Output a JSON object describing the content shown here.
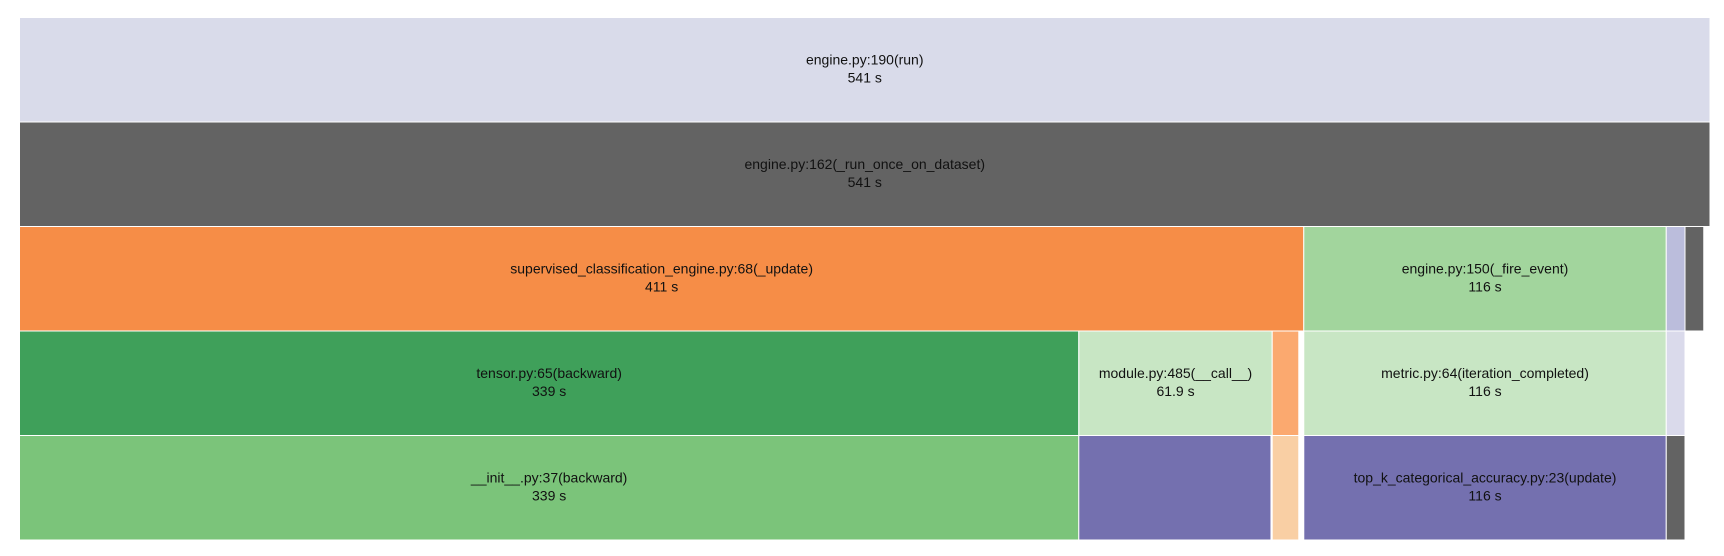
{
  "chart_data": {
    "type": "icicle",
    "root": {
      "name": "engine.py:190(run)",
      "value": 541,
      "value_label": "541 s",
      "color": "#d9dbea",
      "children": [
        {
          "name": "engine.py:162(_run_once_on_dataset)",
          "value": 541,
          "value_label": "541 s",
          "color": "#636363",
          "children": [
            {
              "name": "supervised_classification_engine.py:68(_update)",
              "value": 411,
              "value_label": "411 s",
              "color": "#f68d47",
              "children": [
                {
                  "name": "tensor.py:65(backward)",
                  "value": 339,
                  "value_label": "339 s",
                  "color": "#3fa05a",
                  "children": [
                    {
                      "name": "__init__.py:37(backward)",
                      "value": 339,
                      "value_label": "339 s",
                      "color": "#7bc47a",
                      "children": []
                    }
                  ]
                },
                {
                  "name": "module.py:485(__call__)",
                  "value": 61.9,
                  "value_label": "61.9 s",
                  "color": "#c8e6c4",
                  "children": [
                    {
                      "value": 61.5,
                      "color": "#7470af",
                      "children": []
                    }
                  ]
                },
                {
                  "value": 8.5,
                  "color": "#fba96f",
                  "children": [
                    {
                      "value": 8.5,
                      "color": "#f9cfa4",
                      "children": []
                    }
                  ]
                }
              ]
            },
            {
              "name": "engine.py:150(_fire_event)",
              "value": 116,
              "value_label": "116 s",
              "color": "#a2d59d",
              "children": [
                {
                  "name": "metric.py:64(iteration_completed)",
                  "value": 116,
                  "value_label": "116 s",
                  "color": "#c8e6c4",
                  "children": [
                    {
                      "name": "top_k_categorical_accuracy.py:23(update)",
                      "value": 116,
                      "value_label": "116 s",
                      "color": "#7470af",
                      "children": []
                    }
                  ]
                }
              ]
            },
            {
              "value": 6,
              "color": "#bbbddc",
              "children": [
                {
                  "value": 6,
                  "color": "#dadaeb",
                  "children": [
                    {
                      "value": 6,
                      "color": "#636363",
                      "children": []
                    }
                  ]
                }
              ]
            },
            {
              "value": 6,
              "color": "#636363",
              "children": []
            }
          ]
        }
      ]
    }
  }
}
